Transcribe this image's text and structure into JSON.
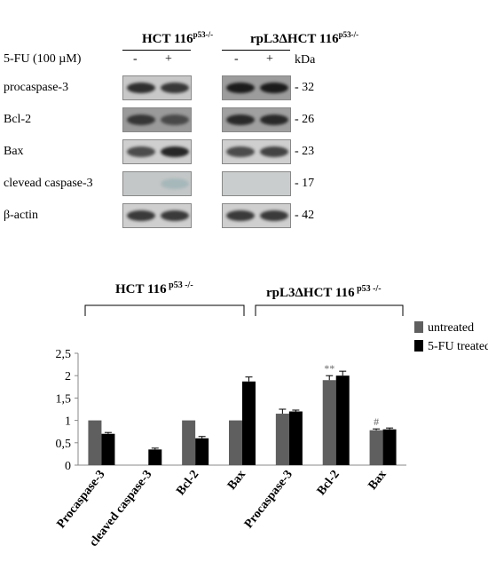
{
  "blot": {
    "group_headers": [
      {
        "name": "HCT 116",
        "sup": "p53-/-"
      },
      {
        "name": "rpL3ΔHCT 116",
        "sup": "p53-/-"
      }
    ],
    "treatment_label": "5-FU (100 µM)",
    "lane_signs": [
      "-",
      "+",
      "-",
      "+"
    ],
    "kda_label": "kDa",
    "rows": [
      {
        "label": "procaspase-3",
        "kda": "- 32"
      },
      {
        "label": "Bcl-2",
        "kda": "- 26"
      },
      {
        "label": "Bax",
        "kda": "- 23"
      },
      {
        "label": "clevead caspase-3",
        "kda": "- 17"
      },
      {
        "label": "β-actin",
        "kda": "- 42"
      }
    ],
    "band_intensity": [
      [
        0.85,
        0.8,
        0.95,
        0.95
      ],
      [
        0.75,
        0.6,
        0.85,
        0.85
      ],
      [
        0.7,
        0.9,
        0.7,
        0.75
      ],
      [
        0.0,
        0.25,
        0.0,
        0.0
      ],
      [
        0.8,
        0.8,
        0.8,
        0.8
      ]
    ]
  },
  "chart_data": {
    "type": "bar",
    "group_headers": [
      {
        "name": "HCT 116",
        "sup": "p53 -/-"
      },
      {
        "name": "rpL3ΔHCT 116",
        "sup": "p53 -/-"
      }
    ],
    "categories": [
      "Procaspase-3",
      "cleaved caspase-3",
      "Bcl-2",
      "Bax",
      "Procaspase-3",
      "Bcl-2",
      "Bax"
    ],
    "series": [
      {
        "name": "untreated",
        "color": "#5f5f5f",
        "values": [
          1,
          0,
          1,
          1,
          1.15,
          1.9,
          0.78
        ],
        "errors": [
          0,
          0,
          0,
          0,
          0.1,
          0.1,
          0.03
        ]
      },
      {
        "name": "5-FU treated",
        "color": "#000000",
        "values": [
          0.7,
          0.35,
          0.6,
          1.87,
          1.2,
          2.0,
          0.8
        ],
        "errors": [
          0.03,
          0.03,
          0.04,
          0.1,
          0.03,
          0.1,
          0.03
        ]
      }
    ],
    "annotations": [
      {
        "category_index": 5,
        "series_index": 0,
        "text": "**"
      },
      {
        "category_index": 6,
        "series_index": 0,
        "text": "#"
      }
    ],
    "yticks": [
      "0",
      "0,5",
      "1",
      "1,5",
      "2",
      "2,5"
    ],
    "ylim": [
      0,
      2.5
    ],
    "legend_position": "right",
    "grid": false
  }
}
